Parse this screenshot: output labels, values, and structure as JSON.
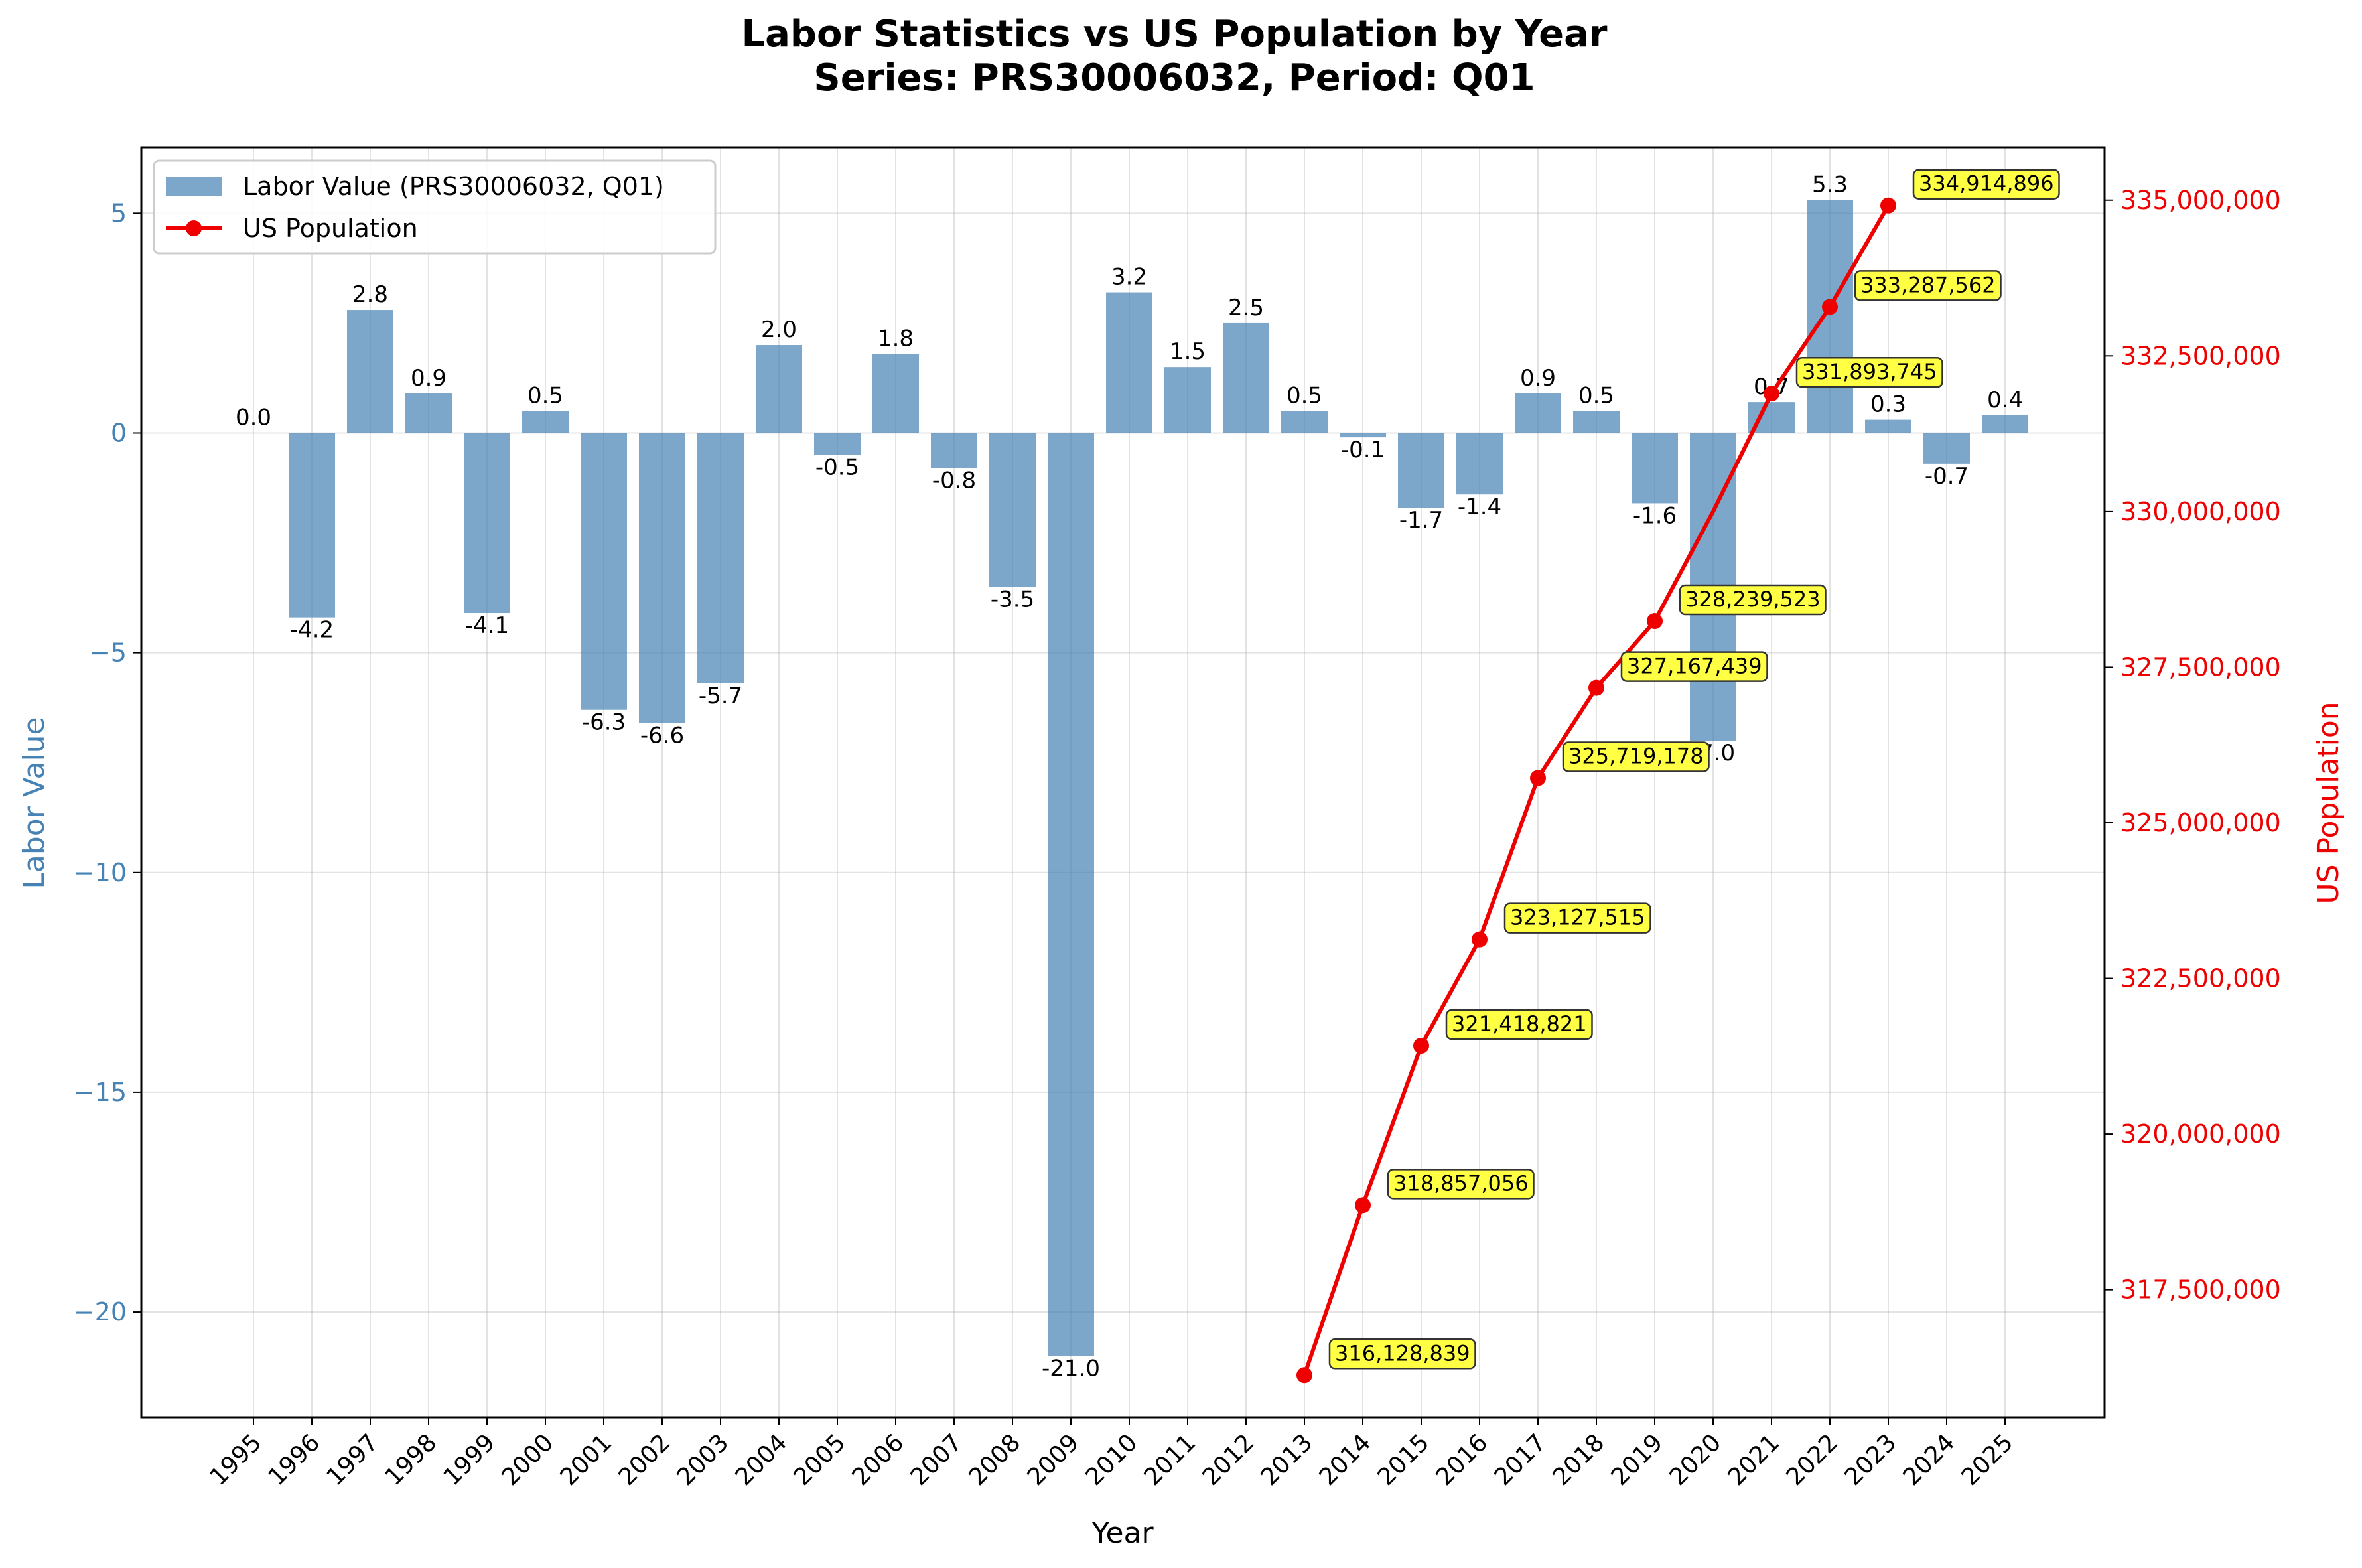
{
  "chart_data": {
    "type": "bar",
    "title_line1": "Labor Statistics vs US Population by Year",
    "title_line2": "Series: PRS30006032, Period: Q01",
    "xlabel": "Year",
    "ylabel_left": "Labor Value",
    "ylabel_right": "US Population",
    "legend_placement": "upper-left",
    "grid": true,
    "colors": {
      "bar": "#4682b4",
      "line": "#ee0000",
      "annotation_fill": "#ffff44",
      "left_axis_label": "#4682b4",
      "right_axis_label": "#ee0000"
    },
    "categories": [
      "1995",
      "1996",
      "1997",
      "1998",
      "1999",
      "2000",
      "2001",
      "2002",
      "2003",
      "2004",
      "2005",
      "2006",
      "2007",
      "2008",
      "2009",
      "2010",
      "2011",
      "2012",
      "2013",
      "2014",
      "2015",
      "2016",
      "2017",
      "2018",
      "2019",
      "2020",
      "2021",
      "2022",
      "2023",
      "2024",
      "2025"
    ],
    "series": [
      {
        "name": "Labor Value (PRS30006032, Q01)",
        "type": "bar",
        "axis": "left",
        "values": [
          0.0,
          -4.2,
          2.8,
          0.9,
          -4.1,
          0.5,
          -6.3,
          -6.6,
          -5.7,
          2.0,
          -0.5,
          1.8,
          -0.8,
          -3.5,
          -21.0,
          3.2,
          1.5,
          2.5,
          0.5,
          -0.1,
          -1.7,
          -1.4,
          0.9,
          0.5,
          -1.6,
          -7.0,
          0.7,
          5.3,
          0.3,
          -0.7,
          0.4
        ],
        "labels": [
          "0.0",
          "-4.2",
          "2.8",
          "0.9",
          "-4.1",
          "0.5",
          "-6.3",
          "-6.6",
          "-5.7",
          "2.0",
          "-0.5",
          "1.8",
          "-0.8",
          "-3.5",
          "-21.0",
          "3.2",
          "1.5",
          "2.5",
          "0.5",
          "-0.1",
          "-1.7",
          "-1.4",
          "0.9",
          "0.5",
          "-1.6",
          "-7.0",
          "0.7",
          "5.3",
          "0.3",
          "-0.7",
          "0.4"
        ]
      },
      {
        "name": "US Population",
        "type": "line",
        "axis": "right",
        "x": [
          "2013",
          "2014",
          "2015",
          "2016",
          "2017",
          "2018",
          "2019",
          "2020",
          "2021",
          "2022",
          "2023"
        ],
        "values": [
          316128839,
          318857056,
          321418821,
          323127515,
          325719178,
          327167439,
          328239523,
          330000000,
          331893745,
          333287562,
          334914896
        ],
        "labels": [
          "316,128,839",
          "318,857,056",
          "321,418,821",
          "323,127,515",
          "325,719,178",
          "327,167,439",
          "328,239,523",
          "",
          "331,893,745",
          "333,287,562",
          "334,914,896"
        ]
      }
    ],
    "ylim_left": [
      -22.4,
      6.5
    ],
    "yticks_left": [
      5,
      0,
      -5,
      -10,
      -15,
      -20
    ],
    "ytick_labels_left": [
      "5",
      "0",
      "−5",
      "−10",
      "−15",
      "−20"
    ],
    "ylim_right": [
      315450000,
      335850000
    ],
    "yticks_right": [
      335000000,
      332500000,
      330000000,
      327500000,
      325000000,
      322500000,
      320000000,
      317500000
    ],
    "ytick_labels_right": [
      "335,000,000",
      "332,500,000",
      "330,000,000",
      "327,500,000",
      "325,000,000",
      "322,500,000",
      "320,000,000",
      "317,500,000"
    ]
  }
}
